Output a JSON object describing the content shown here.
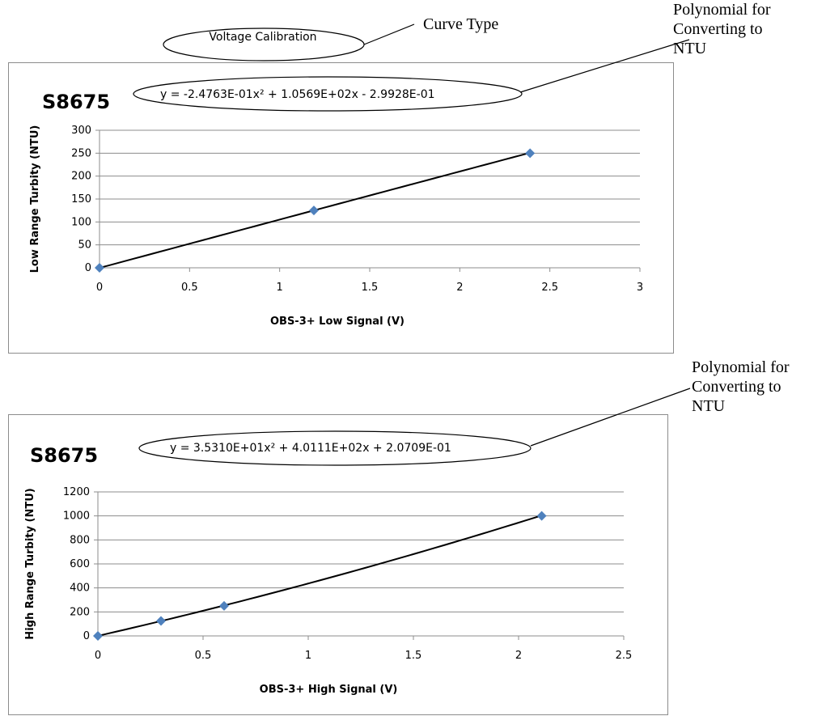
{
  "annotations": {
    "curve_type": "Curve Type",
    "voltage_calibration": "Voltage Calibration",
    "polynomial_top": "Polynomial for\nConverting to\nNTU",
    "polynomial_bottom": "Polynomial for\nConverting to\nNTU"
  },
  "chart_data": [
    {
      "type": "scatter",
      "title": "S8675",
      "equation": "y = -2.4763E-01x² + 1.0569E+02x - 2.9928E-01",
      "xlabel": "OBS-3+ Low Signal (V)",
      "ylabel": "Low Range Turbity  (NTU)",
      "xlim": [
        0,
        3
      ],
      "ylim": [
        0,
        300
      ],
      "xticks": [
        0,
        0.5,
        1,
        1.5,
        2,
        2.5,
        3
      ],
      "yticks": [
        0,
        50,
        100,
        150,
        200,
        250,
        300
      ],
      "grid": true,
      "series": [
        {
          "x": [
            0,
            1.19,
            2.39
          ],
          "y": [
            0,
            125,
            250
          ],
          "color": "#4f81bd"
        }
      ],
      "trendline": {
        "type": "polynomial",
        "coefficients": [
          -0.24763,
          105.69,
          -0.29928
        ],
        "color": "#000000"
      }
    },
    {
      "type": "scatter",
      "title": "S8675",
      "equation": "y = 3.5310E+01x² + 4.0111E+02x + 2.0709E-01",
      "xlabel": "OBS-3+ High Signal (V)",
      "ylabel": "High Range Turbity  (NTU)",
      "xlim": [
        0,
        2.5
      ],
      "ylim": [
        0,
        1200
      ],
      "xticks": [
        0,
        0.5,
        1,
        1.5,
        2,
        2.5
      ],
      "yticks": [
        0,
        200,
        400,
        600,
        800,
        1000,
        1200
      ],
      "grid": true,
      "series": [
        {
          "x": [
            0,
            0.3,
            0.6,
            2.11
          ],
          "y": [
            0,
            125,
            250,
            1000
          ],
          "color": "#4f81bd"
        }
      ],
      "trendline": {
        "type": "polynomial",
        "coefficients": [
          35.31,
          401.11,
          0.20709
        ],
        "color": "#000000"
      }
    }
  ]
}
